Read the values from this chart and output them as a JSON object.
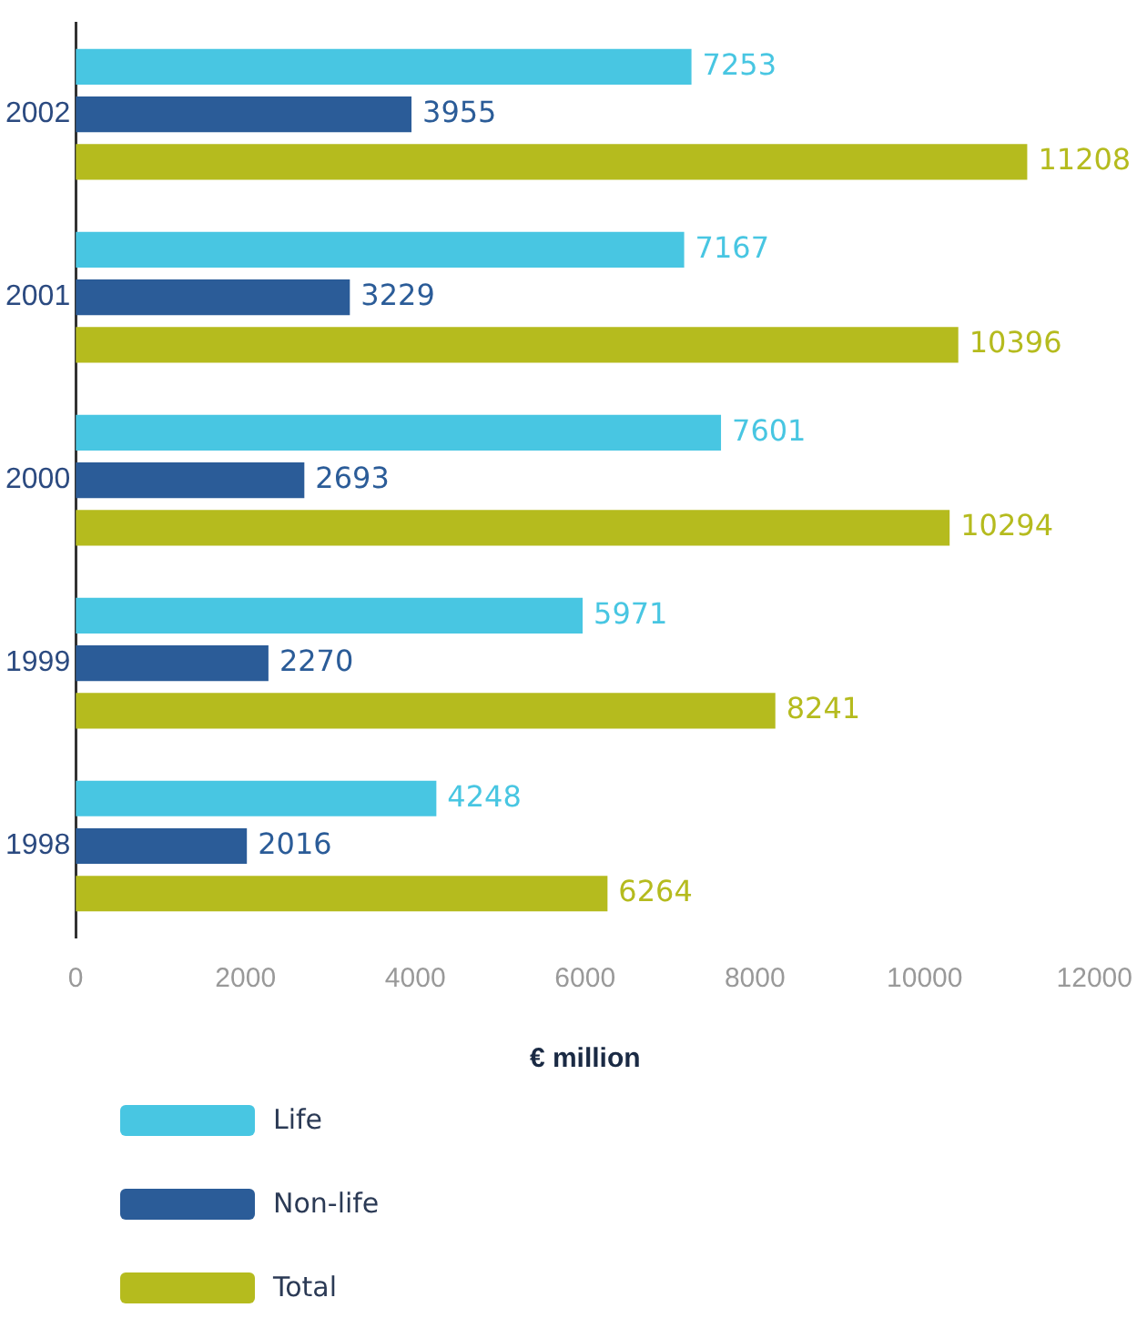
{
  "chart_data": {
    "type": "bar",
    "orientation": "horizontal",
    "categories": [
      "2002",
      "2001",
      "2000",
      "1999",
      "1998"
    ],
    "series": [
      {
        "name": "Life",
        "color": "#48c6e2",
        "values": [
          7253,
          7167,
          7601,
          5971,
          4248
        ]
      },
      {
        "name": "Non-life",
        "color": "#2b5c98",
        "values": [
          3955,
          3229,
          2693,
          2270,
          2016
        ]
      },
      {
        "name": "Total",
        "color": "#b5bb1e",
        "values": [
          11208,
          10396,
          10294,
          8241,
          6264
        ]
      }
    ],
    "xlim": [
      0,
      12000
    ],
    "xticks": [
      0,
      2000,
      4000,
      6000,
      8000,
      10000,
      12000
    ],
    "xlabel": "€ million",
    "grid": false,
    "legend": "bottom left",
    "data_labels": true
  }
}
